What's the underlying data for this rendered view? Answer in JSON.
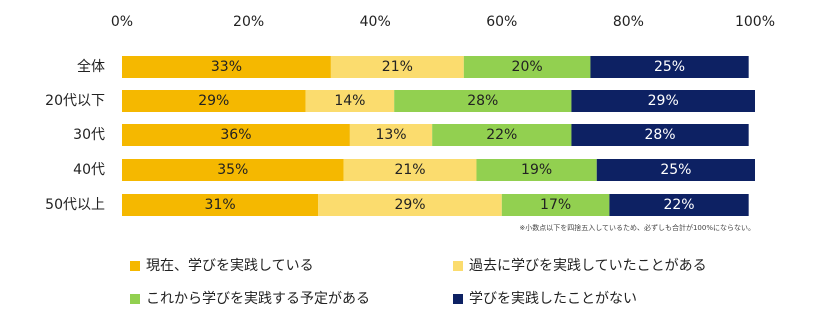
{
  "chart_data": {
    "type": "stacked-bar-horizontal",
    "categories": [
      "全体",
      "20代以下",
      "30代",
      "40代",
      "50代以上"
    ],
    "series": [
      {
        "name": "現在、学びを実践している",
        "color": "#f5b800",
        "values": [
          33,
          29,
          36,
          35,
          31
        ],
        "value_labels": [
          "33%",
          "29%",
          "36%",
          "35%",
          "31%"
        ]
      },
      {
        "name": "過去に学びを実践していたことがある",
        "color": "#fbdc6e",
        "values": [
          21,
          14,
          13,
          21,
          29
        ],
        "value_labels": [
          "21%",
          "14%",
          "13%",
          "21%",
          "29%"
        ]
      },
      {
        "name": "これから学びを実践する予定がある",
        "color": "#92d050",
        "values": [
          20,
          28,
          22,
          19,
          17
        ],
        "value_labels": [
          "20%",
          "28%",
          "22%",
          "19%",
          "17%"
        ]
      },
      {
        "name": "学びを実践したことがない",
        "color": "#0d2163",
        "values": [
          25,
          29,
          28,
          25,
          22
        ],
        "value_labels": [
          "25%",
          "29%",
          "28%",
          "25%",
          "22%"
        ]
      }
    ],
    "xlim": [
      0,
      100
    ],
    "xticks": [
      {
        "value": 0,
        "label": "0%"
      },
      {
        "value": 20,
        "label": "20%"
      },
      {
        "value": 40,
        "label": "40%"
      },
      {
        "value": 60,
        "label": "60%"
      },
      {
        "value": 80,
        "label": "80%"
      },
      {
        "value": 100,
        "label": "100%"
      }
    ],
    "note": "※小数点以下を四捨五入しているため、必ずしも合計が100%にならない。"
  }
}
